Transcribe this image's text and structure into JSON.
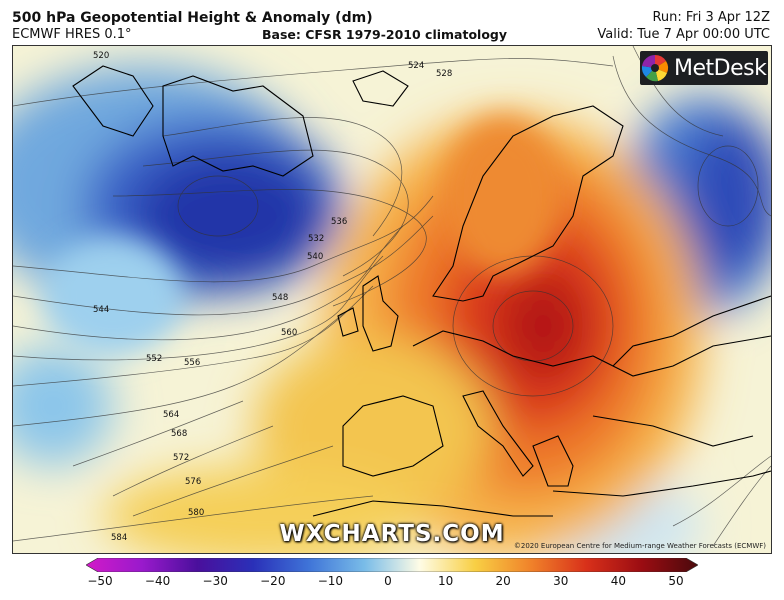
{
  "header": {
    "title": "500 hPa Geopotential Height & Anomaly (dm)",
    "model": "ECMWF HRES 0.1°",
    "base": "Base: CFSR 1979-2010 climatology",
    "run": "Run: Fri 3 Apr 12Z",
    "valid": "Valid: Tue 7 Apr 00:00 UTC"
  },
  "logo": {
    "text": "MetDesk"
  },
  "watermark": "WXCHARTS.COM",
  "copyright": "©2020 European Centre for Medium-range Weather Forecasts (ECMWF)",
  "colorbar": {
    "ticks": [
      "−50",
      "−40",
      "−30",
      "−20",
      "−10",
      "0",
      "10",
      "20",
      "30",
      "40",
      "50"
    ],
    "colors": [
      "#d21ac8",
      "#9a1acc",
      "#4a0f9c",
      "#2a30b8",
      "#3f74d8",
      "#79bce8",
      "#fefce6",
      "#f8cf44",
      "#f0822a",
      "#d8301a",
      "#9a0c12",
      "#4a0a0c"
    ]
  },
  "contours": [
    {
      "label": "520"
    },
    {
      "label": "524"
    },
    {
      "label": "528"
    },
    {
      "label": "532"
    },
    {
      "label": "536"
    },
    {
      "label": "540"
    },
    {
      "label": "544"
    },
    {
      "label": "548"
    },
    {
      "label": "552"
    },
    {
      "label": "556"
    },
    {
      "label": "560"
    },
    {
      "label": "564"
    },
    {
      "label": "568"
    },
    {
      "label": "572"
    },
    {
      "label": "576"
    },
    {
      "label": "580"
    },
    {
      "label": "584"
    }
  ]
}
